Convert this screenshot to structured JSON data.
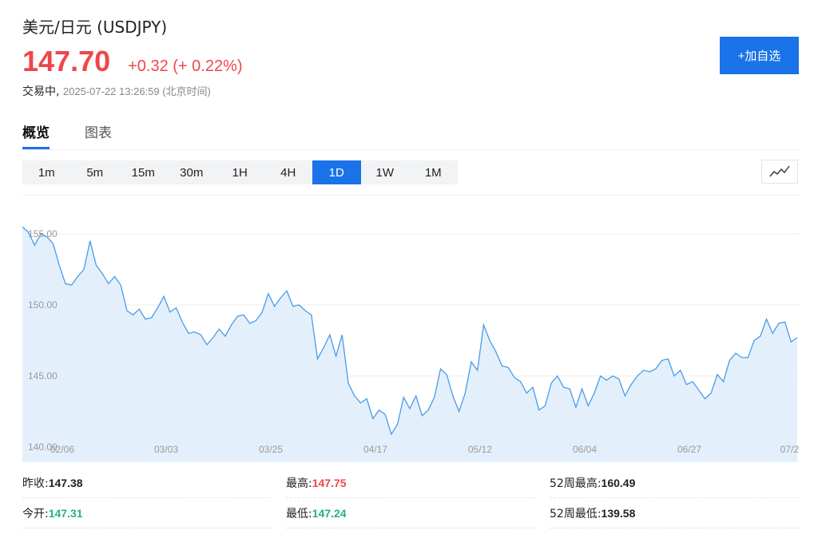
{
  "header": {
    "title": "美元/日元 (USDJPY)",
    "price": "147.70",
    "change": "+0.32 (+ 0.22%)",
    "status_label": "交易中,",
    "timestamp": "2025-07-22 13:26:59 (北京时间)",
    "add_button": "+加自选"
  },
  "tabs": [
    {
      "label": "概览",
      "active": true
    },
    {
      "label": "图表",
      "active": false
    }
  ],
  "intervals": [
    {
      "label": "1m",
      "active": false
    },
    {
      "label": "5m",
      "active": false
    },
    {
      "label": "15m",
      "active": false
    },
    {
      "label": "30m",
      "active": false
    },
    {
      "label": "1H",
      "active": false
    },
    {
      "label": "4H",
      "active": false
    },
    {
      "label": "1D",
      "active": true
    },
    {
      "label": "1W",
      "active": false
    },
    {
      "label": "1M",
      "active": false
    }
  ],
  "chart_data": {
    "type": "area",
    "y_ticks": [
      "155.00",
      "150.00",
      "145.00",
      "140.00"
    ],
    "x_ticks": [
      "02/06",
      "03/03",
      "03/25",
      "04/17",
      "05/12",
      "06/04",
      "06/27",
      "07/2"
    ],
    "ylim": [
      140,
      155
    ],
    "values": [
      155.5,
      155.1,
      154.2,
      155.0,
      154.8,
      154.3,
      152.8,
      151.5,
      151.4,
      152.0,
      152.5,
      154.5,
      152.8,
      152.2,
      151.5,
      152.0,
      151.4,
      149.6,
      149.3,
      149.7,
      149.0,
      149.1,
      149.8,
      150.6,
      149.5,
      149.8,
      148.8,
      148.0,
      148.1,
      147.9,
      147.2,
      147.7,
      148.3,
      147.8,
      148.6,
      149.2,
      149.3,
      148.7,
      148.9,
      149.5,
      150.8,
      149.9,
      150.5,
      151.0,
      149.9,
      150.0,
      149.6,
      149.3,
      146.2,
      147.0,
      147.9,
      146.4,
      147.9,
      144.5,
      143.6,
      143.1,
      143.4,
      142.0,
      142.6,
      142.3,
      140.9,
      141.6,
      143.5,
      142.7,
      143.6,
      142.2,
      142.6,
      143.5,
      145.5,
      145.1,
      143.6,
      142.5,
      143.8,
      146.0,
      145.4,
      148.6,
      147.5,
      146.7,
      145.7,
      145.6,
      144.9,
      144.6,
      143.8,
      144.2,
      142.6,
      142.9,
      144.5,
      145.0,
      144.2,
      144.1,
      142.8,
      144.1,
      142.9,
      143.8,
      145.0,
      144.7,
      145.0,
      144.8,
      143.6,
      144.4,
      145.0,
      145.4,
      145.3,
      145.5,
      146.1,
      146.2,
      145.0,
      145.4,
      144.4,
      144.6,
      144.0,
      143.4,
      143.8,
      145.1,
      144.6,
      146.1,
      146.6,
      146.3,
      146.3,
      147.5,
      147.8,
      149.0,
      148.0,
      148.7,
      148.8,
      147.4,
      147.7
    ]
  },
  "stats": {
    "prev_close_label": "昨收:",
    "prev_close": "147.38",
    "high_label": "最高:",
    "high": "147.75",
    "high52_label": "52周最高:",
    "high52": "160.49",
    "open_label": "今开:",
    "open": "147.31",
    "low_label": "最低:",
    "low": "147.24",
    "low52_label": "52周最低:",
    "low52": "139.58"
  },
  "colors": {
    "up": "#f0464a",
    "down": "#21b47b",
    "accent": "#1a73e8",
    "line": "#4a9be8",
    "fill": "#e3f0fc"
  }
}
